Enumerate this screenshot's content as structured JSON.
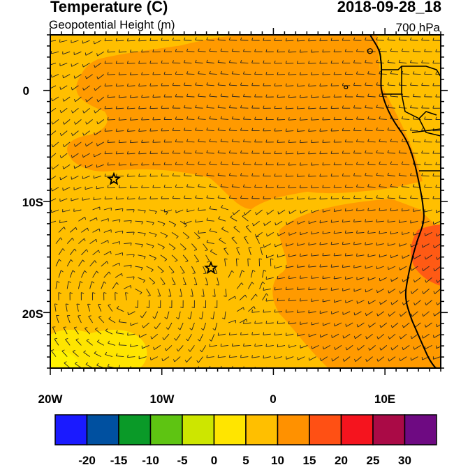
{
  "header": {
    "title": "Temperature (C)",
    "subtitle": "Geopotential Height (m)",
    "datetime": "2018-09-28_18",
    "level": "700 hPa"
  },
  "map": {
    "lon_range": [
      -20,
      15
    ],
    "lat_range": [
      -25,
      5
    ],
    "x_ticks": [
      "20W",
      "10W",
      "0",
      "10E"
    ],
    "y_ticks": [
      "0",
      "10S",
      "20S"
    ],
    "markers": [
      {
        "name": "star-marker",
        "lon": -14.3,
        "lat": -8.0
      },
      {
        "name": "star-marker",
        "lon": -5.6,
        "lat": -16.0
      }
    ]
  },
  "colorbar": {
    "colors": [
      "#1a1aff",
      "#0050a0",
      "#0a9a28",
      "#5ec412",
      "#cde600",
      "#ffe500",
      "#ffbf00",
      "#ff9100",
      "#ff5014",
      "#f5141e",
      "#aa0a46",
      "#6e0a82"
    ],
    "labels": [
      "-20",
      "-15",
      "-10",
      "-5",
      "0",
      "5",
      "10",
      "15",
      "20",
      "25",
      "30"
    ]
  }
}
